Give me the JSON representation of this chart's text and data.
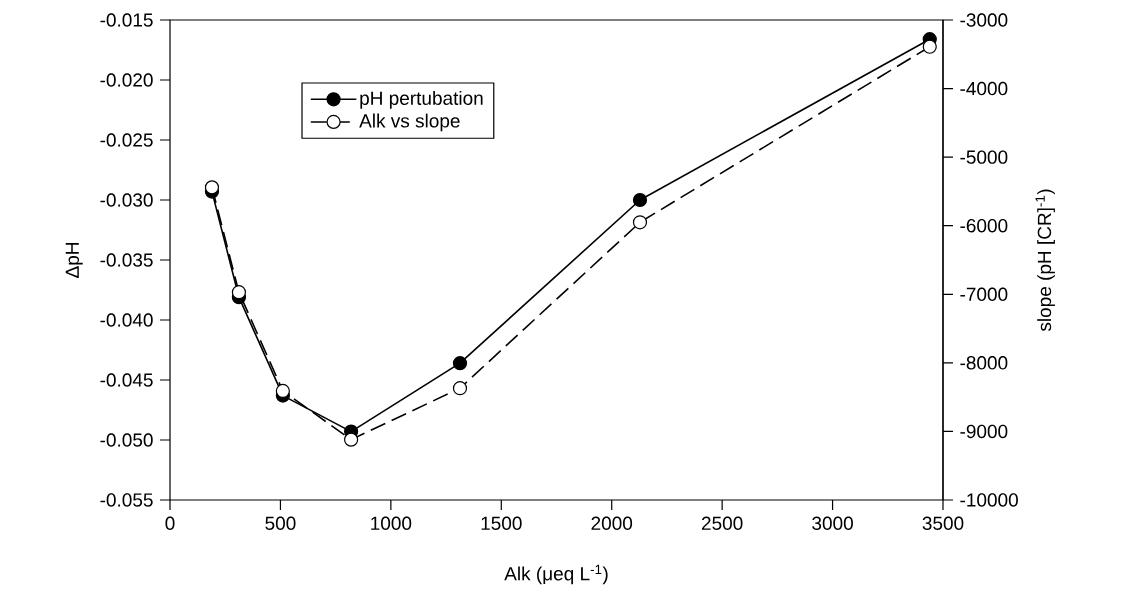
{
  "chart_data": {
    "type": "line",
    "xlabel": "Alk (μeq L$^{-1}$)",
    "ylabel": "ΔpH",
    "y2label": "slope (pH [CR]$^{-1}$)",
    "x": [
      190,
      312,
      511,
      820,
      1313,
      2128,
      3440
    ],
    "series": [
      {
        "name": "pH pertubation",
        "color": "#000000",
        "line_style": "solid",
        "values": [
          -0.0293,
          -0.0381,
          -0.0463,
          -0.0493,
          -0.0436,
          -0.03,
          -0.0166
        ]
      },
      {
        "name": "Alk vs slope",
        "color": "#000000",
        "line_style": "dashed",
        "axis": "y2",
        "values": [
          -5440,
          -6970,
          -8410,
          -9120,
          -8370,
          -5950,
          -3390
        ]
      }
    ],
    "xlim": [
      0,
      3500
    ],
    "xticks": [
      0,
      500,
      1000,
      1500,
      2000,
      2500,
      3000,
      3500
    ],
    "ylim": [
      -0.055,
      -0.015
    ],
    "yticks": [
      {
        "value": -0.055,
        "label": "-0.055"
      },
      {
        "value": -0.05,
        "label": "-0.050"
      },
      {
        "value": -0.045,
        "label": "-0.045"
      },
      {
        "value": -0.04,
        "label": "-0.040"
      },
      {
        "value": -0.035,
        "label": "-0.035"
      },
      {
        "value": -0.03,
        "label": "-0.030"
      },
      {
        "value": -0.025,
        "label": "-0.025"
      },
      {
        "value": -0.02,
        "label": "-0.020"
      },
      {
        "value": -0.015,
        "label": "-0.015"
      }
    ],
    "y2lim": [
      -10000,
      -3000
    ],
    "y2ticks": [
      -10000,
      -9000,
      -8000,
      -7000,
      -6000,
      -5000,
      -4000,
      -3000
    ],
    "marker": "circle",
    "grid": false,
    "legend": "top left"
  }
}
